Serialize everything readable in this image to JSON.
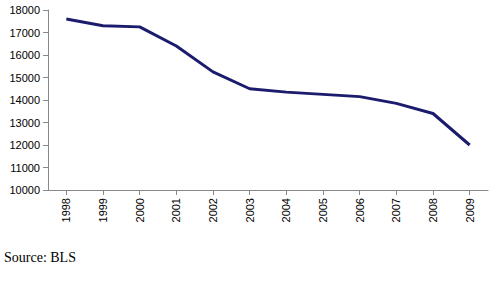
{
  "chart_data": {
    "type": "line",
    "categories": [
      "1998",
      "1999",
      "2000",
      "2001",
      "2002",
      "2003",
      "2004",
      "2005",
      "2006",
      "2007",
      "2008",
      "2009"
    ],
    "values": [
      17600,
      17300,
      17250,
      16400,
      15250,
      14500,
      14350,
      14250,
      14150,
      13850,
      13400,
      12000
    ],
    "color": "#1c1c6e",
    "ylim": [
      10000,
      18000
    ],
    "yticks": [
      10000,
      11000,
      12000,
      13000,
      14000,
      15000,
      16000,
      17000,
      18000
    ],
    "grid": false,
    "annotations": [
      "Source: BLS"
    ]
  }
}
